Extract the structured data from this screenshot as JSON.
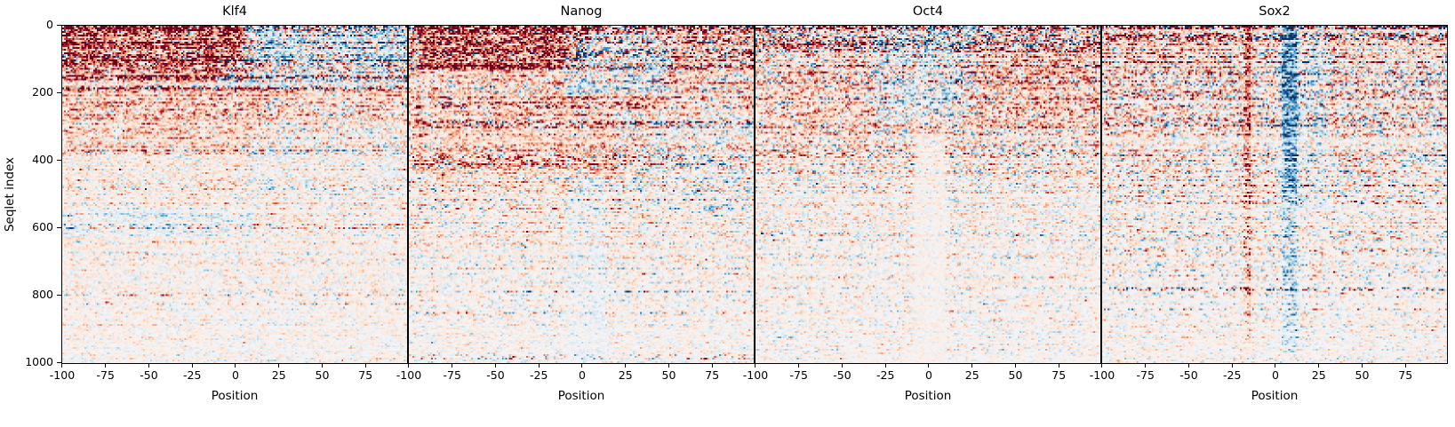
{
  "figure": {
    "ylabel": "Seqlet index",
    "xlabel": "Position",
    "background_color": "#ffffff",
    "text_color": "#000000"
  },
  "chart_data": {
    "type": "heatmap",
    "layout": "1 row x 4 columns, shared y-axis, adjacent panels",
    "xlabel": "Position",
    "ylabel": "Seqlet index",
    "x_range": [
      -100,
      99
    ],
    "y_range": [
      0,
      1004
    ],
    "xticks": [
      -100,
      -75,
      -50,
      -25,
      0,
      25,
      50,
      75
    ],
    "yticks": [
      0,
      200,
      400,
      600,
      800,
      1000
    ],
    "grid": false,
    "legend": "none",
    "colormap": {
      "name": "RdBu_r (red = positive contribution, blue = negative, near-white = 0)",
      "positive_stops": [
        "#faf1ed",
        "#fcdbc5",
        "#f4a582",
        "#d6604d",
        "#b2182b",
        "#67001f"
      ],
      "negative_stops": [
        "#f4f4f7",
        "#d1e5f0",
        "#92c5de",
        "#4393c3",
        "#2166ac",
        "#053061"
      ]
    },
    "note": "Rows (~1004 seqlets) sorted by decreasing overall signal: dense strong red streaks at top fading to sparse faint speckle at bottom.",
    "panels": [
      {
        "title": "Klf4",
        "seed": 11,
        "amp": 0.95,
        "decay": 3.8,
        "bias0": 0.78,
        "bias1": 0.52,
        "dens0": 0.97,
        "dens1": 0.3,
        "features": [
          {
            "x0": 0.0,
            "x1": 0.55,
            "y0": 0.0,
            "y1": 0.16,
            "b": 0.15,
            "a": 1.4
          },
          {
            "x0": 0.52,
            "x1": 1.0,
            "y0": 0.0,
            "y1": 0.1,
            "b": -0.42,
            "a": 0.85
          },
          {
            "x0": 0.45,
            "x1": 1.0,
            "y0": 0.1,
            "y1": 0.18,
            "b": -0.25
          },
          {
            "x0": 0.0,
            "x1": 0.6,
            "y0": 0.18,
            "y1": 0.38,
            "b": 0.1,
            "a": 1.12
          },
          {
            "x0": 0.55,
            "x1": 1.0,
            "y0": 0.3,
            "y1": 0.5,
            "b": -0.15
          },
          {
            "x0": 0.0,
            "x1": 0.55,
            "y0": 0.54,
            "y1": 0.63,
            "b": -0.3
          }
        ]
      },
      {
        "title": "Nanog",
        "seed": 22,
        "amp": 1.0,
        "decay": 3.0,
        "bias0": 0.8,
        "bias1": 0.5,
        "dens0": 0.97,
        "dens1": 0.32,
        "features": [
          {
            "x0": 0.03,
            "x1": 0.52,
            "y0": 0.0,
            "y1": 0.13,
            "b": 0.15,
            "a": 1.5
          },
          {
            "x0": 0.45,
            "x1": 0.75,
            "y0": 0.02,
            "y1": 0.2,
            "b": -0.32
          },
          {
            "x0": 0.0,
            "x1": 0.7,
            "y0": 0.2,
            "y1": 0.45,
            "b": 0.12,
            "a": 1.15
          },
          {
            "x0": 0.6,
            "x1": 1.0,
            "y0": 0.25,
            "y1": 0.55,
            "b": -0.18
          },
          {
            "x0": 0.46,
            "x1": 0.57,
            "y0": 0.45,
            "y1": 1.0,
            "b": -0.28,
            "a": 0.85
          }
        ]
      },
      {
        "title": "Oct4",
        "seed": 33,
        "amp": 0.88,
        "decay": 2.2,
        "bias0": 0.68,
        "bias1": 0.5,
        "dens0": 0.95,
        "dens1": 0.3,
        "features": [
          {
            "x0": 0.35,
            "x1": 0.65,
            "y0": 0.0,
            "y1": 0.28,
            "b": -0.2
          },
          {
            "x0": 0.58,
            "x1": 1.0,
            "y0": 0.06,
            "y1": 0.3,
            "b": 0.16,
            "a": 1.15
          },
          {
            "x0": 0.0,
            "x1": 0.32,
            "y0": 0.16,
            "y1": 0.42,
            "b": 0.12
          },
          {
            "x0": 0.46,
            "x1": 0.55,
            "y0": 0.32,
            "y1": 1.0,
            "a": 0.5,
            "d": 0.65
          }
        ]
      },
      {
        "title": "Sox2",
        "seed": 44,
        "amp": 0.8,
        "decay": 1.6,
        "bias0": 0.64,
        "bias1": 0.5,
        "dens0": 0.93,
        "dens1": 0.3,
        "features": [
          {
            "x0": 0.412,
            "x1": 0.432,
            "y0": 0.0,
            "y1": 0.97,
            "b": 0.38,
            "a": 1.6,
            "d": 1.35
          },
          {
            "x0": 0.52,
            "x1": 0.565,
            "y0": 0.0,
            "y1": 0.97,
            "b": -0.45,
            "a": 1.5,
            "d": 1.3
          },
          {
            "x0": 0.5,
            "x1": 0.66,
            "y0": 0.02,
            "y1": 0.55,
            "b": -0.18
          },
          {
            "x0": 0.0,
            "x1": 0.4,
            "y0": 0.0,
            "y1": 0.14,
            "b": 0.1,
            "a": 1.1
          }
        ]
      }
    ]
  }
}
